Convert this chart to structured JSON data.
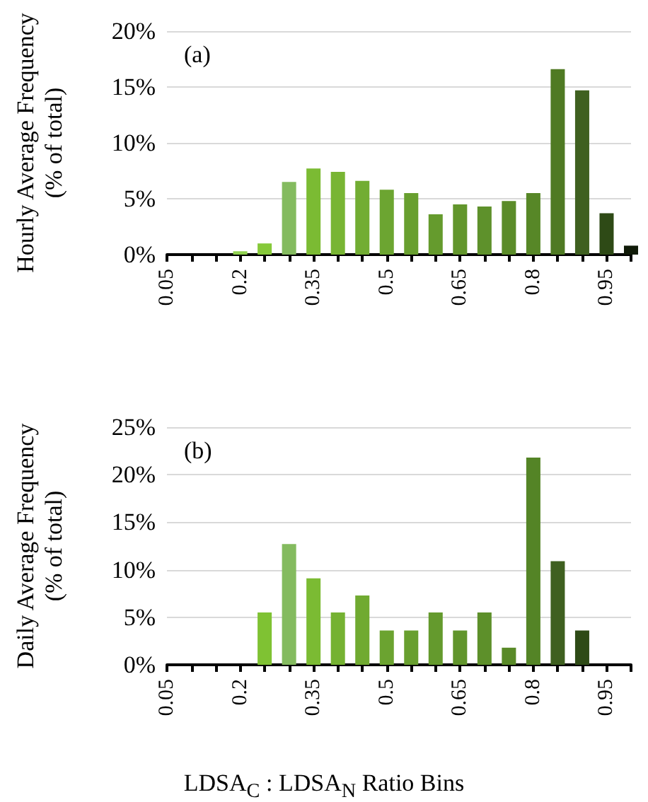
{
  "chart_data": [
    {
      "type": "bar",
      "categories": [
        "0.05",
        null,
        null,
        "0.2",
        null,
        null,
        "0.35",
        null,
        null,
        "0.5",
        null,
        null,
        "0.65",
        null,
        null,
        "0.8",
        null,
        null,
        "0.95",
        null
      ],
      "values": [
        0,
        0,
        0,
        0.3,
        1.0,
        6.5,
        7.7,
        7.4,
        6.6,
        5.8,
        5.5,
        3.6,
        4.5,
        4.3,
        4.8,
        5.5,
        16.6,
        14.7,
        3.7,
        0.8
      ],
      "colors": [
        "#92d050",
        "#92d050",
        "#92d050",
        "#8fd14f",
        "#86c93a",
        "#84bb5f",
        "#7bbb33",
        "#78b533",
        "#72ad33",
        "#6ca531",
        "#689f2f",
        "#659b2d",
        "#62962c",
        "#5e912b",
        "#5b8c29",
        "#578727",
        "#4f7a23",
        "#3f6020",
        "#2e4a16",
        "#101a08"
      ],
      "ylabel": "Hourly Average Frequency (% of total)",
      "annotations": [
        "(a)"
      ],
      "ylim": [
        0,
        20
      ],
      "yticks": [
        {
          "value": 0,
          "label": "0%"
        },
        {
          "value": 5,
          "label": "5%"
        },
        {
          "value": 10,
          "label": "10%"
        },
        {
          "value": 15,
          "label": "15%"
        },
        {
          "value": 20,
          "label": "20%"
        }
      ],
      "grid": "y"
    },
    {
      "type": "bar",
      "categories": [
        "0.05",
        null,
        null,
        "0.2",
        null,
        null,
        "0.35",
        null,
        null,
        "0.5",
        null,
        null,
        "0.65",
        null,
        null,
        "0.8",
        null,
        null,
        "0.95",
        null
      ],
      "values": [
        0,
        0,
        0,
        0,
        5.5,
        12.7,
        9.1,
        5.5,
        7.3,
        3.6,
        3.6,
        5.5,
        3.6,
        5.5,
        1.8,
        21.8,
        10.9,
        3.6,
        0,
        0
      ],
      "colors": [
        "#92d050",
        "#92d050",
        "#92d050",
        "#92d050",
        "#7fc233",
        "#84bb5f",
        "#7bbb33",
        "#75b232",
        "#70aa31",
        "#6ba330",
        "#689f2f",
        "#649a2d",
        "#61952c",
        "#5d902a",
        "#598a28",
        "#548426",
        "#3f6020",
        "#2e4a16",
        "#2e4a16",
        "#2e4a16"
      ],
      "ylabel": "Daily Average Frequency (% of total)",
      "xlabel": "LDSA$_{C}$ : LDSA$_{N}$ Ratio Bins",
      "annotations": [
        "(b)"
      ],
      "ylim": [
        0,
        25
      ],
      "yticks": [
        {
          "value": 0,
          "label": "0%"
        },
        {
          "value": 5,
          "label": "5%"
        },
        {
          "value": 10,
          "label": "10%"
        },
        {
          "value": 15,
          "label": "15%"
        },
        {
          "value": 20,
          "label": "20%"
        },
        {
          "value": 25,
          "label": "25%"
        }
      ],
      "grid": "y"
    }
  ]
}
